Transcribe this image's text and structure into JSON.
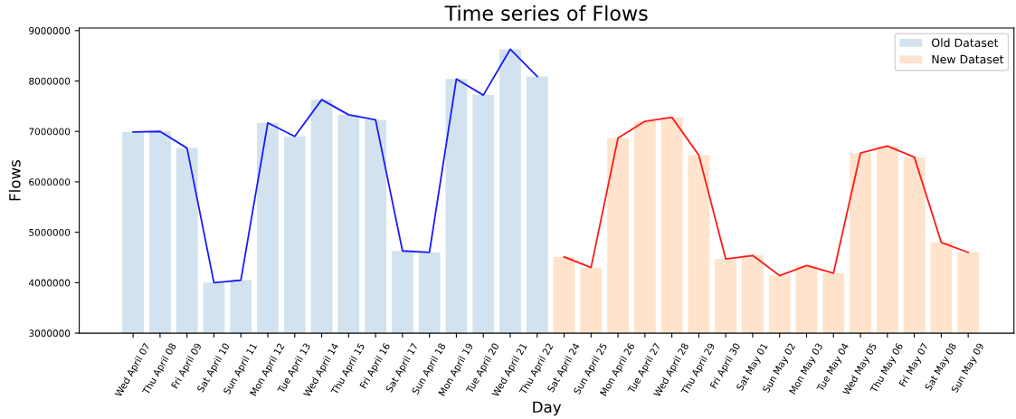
{
  "chart_data": {
    "type": "bar",
    "title": "Time series of Flows",
    "xlabel": "Day",
    "ylabel": "Flows",
    "categories": [
      "Wed April 07",
      "Thu April 08",
      "Fri April 09",
      "Sat April 10",
      "Sun April 11",
      "Mon April 12",
      "Tue April 13",
      "Wed April 14",
      "Thu April 15",
      "Fri April 16",
      "Sat April 17",
      "Sun April 18",
      "Mon April 19",
      "Tue April 20",
      "Wed April 21",
      "Thu April 22",
      "Sat April 24",
      "Sun April 25",
      "Mon April 26",
      "Tue April 27",
      "Wed April 28",
      "Thu April 29",
      "Fri April 30",
      "Sat May 01",
      "Sun May 02",
      "Mon May 03",
      "Tue May 04",
      "Wed May 05",
      "Thu May 06",
      "Fri May 07",
      "Sat May 08",
      "Sun May 09"
    ],
    "series": [
      {
        "name": "Old Dataset",
        "color": "#d2e3ef",
        "values": [
          6990000,
          7000000,
          6670000,
          4000000,
          4050000,
          7170000,
          6900000,
          7630000,
          7330000,
          7230000,
          4630000,
          4600000,
          8040000,
          7720000,
          8630000,
          8090000,
          null,
          null,
          null,
          null,
          null,
          null,
          null,
          null,
          null,
          null,
          null,
          null,
          null,
          null,
          null,
          null
        ]
      },
      {
        "name": "New Dataset",
        "color": "#ffe3cc",
        "values": [
          null,
          null,
          null,
          null,
          null,
          null,
          null,
          null,
          null,
          null,
          null,
          null,
          null,
          null,
          null,
          null,
          4510000,
          4300000,
          6870000,
          7200000,
          7280000,
          6530000,
          4470000,
          4540000,
          4140000,
          4340000,
          4190000,
          6570000,
          6710000,
          6490000,
          4800000,
          4600000
        ]
      },
      {
        "type": "line",
        "color": "#1a1aff",
        "values": [
          6990000,
          7000000,
          6670000,
          4000000,
          4050000,
          7170000,
          6900000,
          7630000,
          7330000,
          7230000,
          4630000,
          4600000,
          8040000,
          7720000,
          8630000,
          8090000,
          null,
          null,
          null,
          null,
          null,
          null,
          null,
          null,
          null,
          null,
          null,
          null,
          null,
          null,
          null,
          null
        ]
      },
      {
        "type": "line",
        "color": "#ff1a1a",
        "values": [
          null,
          null,
          null,
          null,
          null,
          null,
          null,
          null,
          null,
          null,
          null,
          null,
          null,
          null,
          null,
          null,
          4510000,
          4300000,
          6870000,
          7200000,
          7280000,
          6530000,
          4470000,
          4540000,
          4140000,
          4340000,
          4190000,
          6570000,
          6710000,
          6490000,
          4800000,
          4600000
        ]
      }
    ],
    "ylim": [
      3000000,
      9050000
    ],
    "yticks": [
      3000000,
      4000000,
      5000000,
      6000000,
      7000000,
      8000000,
      9000000
    ],
    "grid": false,
    "legend": "top right"
  }
}
